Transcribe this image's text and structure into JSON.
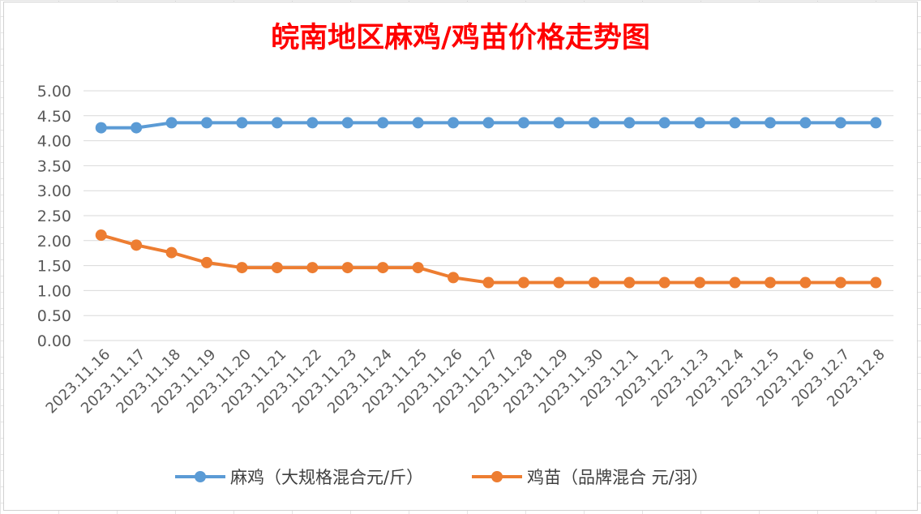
{
  "chart_data": {
    "type": "line",
    "title": "皖南地区麻鸡/鸡苗价格走势图",
    "title_color": "#ff0000",
    "categories": [
      "2023.11.16",
      "2023.11.17",
      "2023.11.18",
      "2023.11.19",
      "2023.11.20",
      "2023.11.21",
      "2023.11.22",
      "2023.11.23",
      "2023.11.24",
      "2023.11.25",
      "2023.11.26",
      "2023.11.27",
      "2023.11.28",
      "2023.11.29",
      "2023.11.30",
      "2023.12.1",
      "2023.12.2",
      "2023.12.3",
      "2023.12.4",
      "2023.12.5",
      "2023.12.6",
      "2023.12.7",
      "2023.12.8"
    ],
    "series": [
      {
        "name": "麻鸡（大规格混合元/斤）",
        "color": "#5b9bd5",
        "values": [
          4.26,
          4.26,
          4.36,
          4.36,
          4.36,
          4.36,
          4.36,
          4.36,
          4.36,
          4.36,
          4.36,
          4.36,
          4.36,
          4.36,
          4.36,
          4.36,
          4.36,
          4.36,
          4.36,
          4.36,
          4.36,
          4.36,
          4.36
        ]
      },
      {
        "name": "鸡苗（品牌混合 元/羽）",
        "color": "#ed7d31",
        "values": [
          2.11,
          1.91,
          1.76,
          1.56,
          1.46,
          1.46,
          1.46,
          1.46,
          1.46,
          1.46,
          1.26,
          1.16,
          1.16,
          1.16,
          1.16,
          1.16,
          1.16,
          1.16,
          1.16,
          1.16,
          1.16,
          1.16,
          1.16
        ]
      }
    ],
    "ylim": [
      0,
      5
    ],
    "ytick_step": 0.5,
    "ytick_labels": [
      "0.00",
      "0.50",
      "1.00",
      "1.50",
      "2.00",
      "2.50",
      "3.00",
      "3.50",
      "4.00",
      "4.50",
      "5.00"
    ],
    "grid": true,
    "legend_position": "bottom"
  }
}
